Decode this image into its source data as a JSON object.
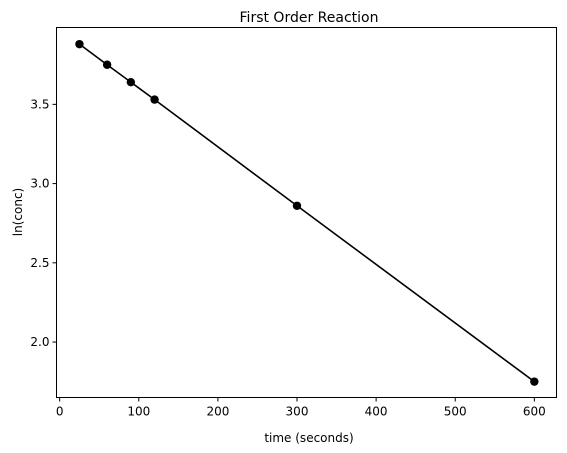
{
  "chart_data": {
    "type": "line",
    "title": "First Order Reaction",
    "xlabel": "time (seconds)",
    "ylabel": "ln(conc)",
    "xlim": [
      -4.0,
      628.0
    ],
    "ylim": [
      1.65,
      3.985
    ],
    "x_ticks": [
      0,
      100,
      200,
      300,
      400,
      500,
      600
    ],
    "y_ticks": [
      2.0,
      2.5,
      3.0,
      3.5
    ],
    "y_tick_labels": [
      "2.0",
      "2.5",
      "3.0",
      "3.5"
    ],
    "grid": false,
    "series": [
      {
        "x": [
          25,
          60,
          90,
          120,
          300,
          600
        ],
        "y": [
          3.88,
          3.75,
          3.64,
          3.53,
          2.86,
          1.75
        ],
        "color": "#000000",
        "marker": "circle"
      }
    ]
  }
}
